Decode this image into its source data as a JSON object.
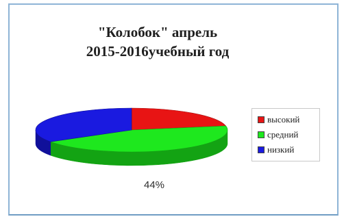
{
  "chart_data": {
    "type": "pie",
    "title_lines": [
      "\"Колобок\" апрель",
      "2015-2016учебный год"
    ],
    "slices": [
      {
        "label": "высокий",
        "value": 22,
        "color": "#e81414",
        "shade": "#a30d0d"
      },
      {
        "label": "средний",
        "value": 44,
        "color": "#1ee81e",
        "shade": "#13a313"
      },
      {
        "label": "низкий",
        "value": 34,
        "color": "#1a1ae0",
        "shade": "#10109a"
      }
    ],
    "data_labels": [
      "44%"
    ],
    "legend_position": "right"
  }
}
